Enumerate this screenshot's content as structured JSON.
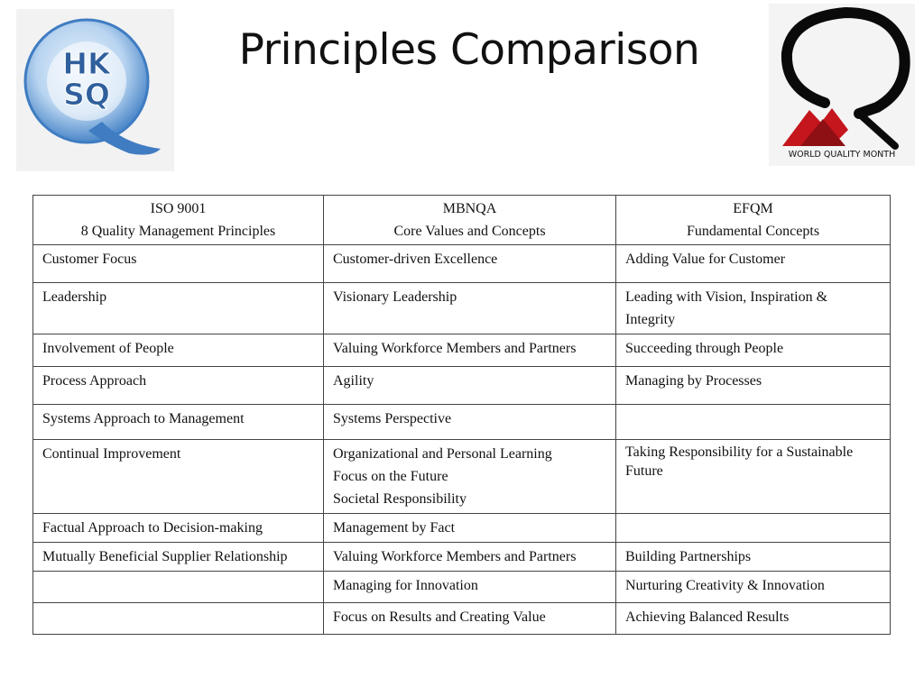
{
  "slide": {
    "title": "Principles Comparison",
    "logo_left_text": [
      "HK",
      "SQ"
    ],
    "logo_right_text": "WORLD QUALITY MONTH"
  },
  "colors": {
    "hksq_blue": "#4a86c8",
    "hksq_light": "#b8d4f0",
    "wqm_red": "#c4161c",
    "border": "#444444"
  },
  "table": {
    "headers": [
      {
        "line1": "ISO  9001",
        "line2": "8  Quality  Management  Principles"
      },
      {
        "line1": "MBNQA",
        "line2": "Core  Values  and  Concepts"
      },
      {
        "line1": "EFQM",
        "line2": "Fundamental  Concepts"
      }
    ],
    "rows": [
      {
        "iso": "Customer Focus",
        "mbnqa": [
          "Customer-driven Excellence"
        ],
        "efqm": [
          "Adding Value for Customer"
        ]
      },
      {
        "iso": "Leadership",
        "mbnqa": [
          "Visionary Leadership"
        ],
        "efqm": [
          "Leading with Vision, Inspiration &",
          "Integrity"
        ]
      },
      {
        "iso": "Involvement of People",
        "mbnqa": [
          "Valuing Workforce Members and Partners"
        ],
        "efqm": [
          "Succeeding through People"
        ]
      },
      {
        "iso": "Process Approach",
        "mbnqa": [
          "Agility"
        ],
        "efqm": [
          "Managing by Processes"
        ]
      },
      {
        "iso": "Systems Approach to Management",
        "mbnqa": [
          "Systems Perspective"
        ],
        "efqm": [
          ""
        ]
      },
      {
        "iso": "Continual Improvement",
        "mbnqa": [
          "Organizational and Personal Learning",
          "Focus on the Future",
          "Societal Responsibility"
        ],
        "efqm": [
          "Taking Responsibility for a Sustainable",
          "Future"
        ]
      },
      {
        "iso": "Factual Approach to Decision-making",
        "mbnqa": [
          "Management by Fact"
        ],
        "efqm": [
          ""
        ]
      },
      {
        "iso": "Mutually Beneficial Supplier Relationship",
        "mbnqa": [
          "Valuing Workforce Members and Partners"
        ],
        "efqm": [
          "Building Partnerships"
        ]
      },
      {
        "iso": "",
        "mbnqa": [
          "Managing for Innovation"
        ],
        "efqm": [
          "Nurturing Creativity & Innovation"
        ]
      },
      {
        "iso": "",
        "mbnqa": [
          "Focus on Results and Creating Value"
        ],
        "efqm": [
          "Achieving Balanced Results"
        ]
      }
    ]
  }
}
